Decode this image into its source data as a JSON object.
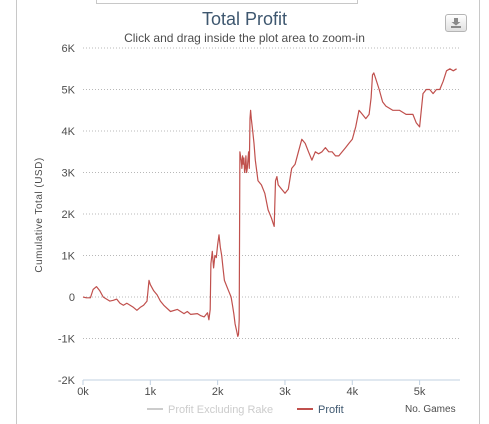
{
  "chart_data": {
    "type": "line",
    "title": "Total Profit",
    "subtitle": "Click and drag inside the plot area to zoom-in",
    "xlabel": "No. Games",
    "ylabel": "Cumulative Total (USD)",
    "xlim": [
      0,
      5600
    ],
    "ylim": [
      -2000,
      6000
    ],
    "x_ticks": [
      "0k",
      "1k",
      "2k",
      "3k",
      "4k",
      "5k"
    ],
    "y_ticks": [
      "-2K",
      "-1K",
      "0",
      "1K",
      "2K",
      "3K",
      "4K",
      "5K",
      "6K"
    ],
    "grid": true,
    "legend_position": "bottom",
    "series": [
      {
        "name": "Profit Excluding Rake",
        "color": "#cccccc",
        "visible": false,
        "points": []
      },
      {
        "name": "Profit",
        "color": "#c0504d",
        "visible": true,
        "points": [
          [
            0,
            0
          ],
          [
            50,
            -20
          ],
          [
            110,
            -20
          ],
          [
            150,
            180
          ],
          [
            200,
            250
          ],
          [
            250,
            150
          ],
          [
            300,
            0
          ],
          [
            350,
            -50
          ],
          [
            400,
            -100
          ],
          [
            450,
            -80
          ],
          [
            500,
            -50
          ],
          [
            550,
            -150
          ],
          [
            600,
            -200
          ],
          [
            650,
            -150
          ],
          [
            700,
            -200
          ],
          [
            750,
            -250
          ],
          [
            800,
            -320
          ],
          [
            850,
            -250
          ],
          [
            900,
            -200
          ],
          [
            950,
            -100
          ],
          [
            980,
            400
          ],
          [
            1000,
            300
          ],
          [
            1050,
            150
          ],
          [
            1100,
            50
          ],
          [
            1150,
            -100
          ],
          [
            1200,
            -200
          ],
          [
            1300,
            -350
          ],
          [
            1400,
            -300
          ],
          [
            1500,
            -400
          ],
          [
            1550,
            -350
          ],
          [
            1600,
            -420
          ],
          [
            1700,
            -400
          ],
          [
            1750,
            -450
          ],
          [
            1800,
            -480
          ],
          [
            1850,
            -380
          ],
          [
            1870,
            -550
          ],
          [
            1890,
            -300
          ],
          [
            1900,
            800
          ],
          [
            1920,
            1100
          ],
          [
            1940,
            700
          ],
          [
            1960,
            1000
          ],
          [
            1980,
            950
          ],
          [
            2000,
            1250
          ],
          [
            2020,
            1500
          ],
          [
            2040,
            1200
          ],
          [
            2060,
            1000
          ],
          [
            2080,
            700
          ],
          [
            2100,
            400
          ],
          [
            2150,
            200
          ],
          [
            2200,
            0
          ],
          [
            2220,
            -200
          ],
          [
            2240,
            -400
          ],
          [
            2260,
            -650
          ],
          [
            2280,
            -800
          ],
          [
            2300,
            -950
          ],
          [
            2310,
            -900
          ],
          [
            2320,
            -550
          ],
          [
            2330,
            3500
          ],
          [
            2340,
            3400
          ],
          [
            2350,
            3300
          ],
          [
            2360,
            3100
          ],
          [
            2370,
            3400
          ],
          [
            2380,
            3200
          ],
          [
            2390,
            3350
          ],
          [
            2400,
            3000
          ],
          [
            2410,
            3100
          ],
          [
            2420,
            3400
          ],
          [
            2430,
            3000
          ],
          [
            2440,
            3100
          ],
          [
            2450,
            3300
          ],
          [
            2460,
            3500
          ],
          [
            2470,
            3100
          ],
          [
            2480,
            4300
          ],
          [
            2490,
            4500
          ],
          [
            2500,
            4300
          ],
          [
            2520,
            4000
          ],
          [
            2540,
            3700
          ],
          [
            2560,
            3300
          ],
          [
            2600,
            2800
          ],
          [
            2650,
            2700
          ],
          [
            2700,
            2500
          ],
          [
            2750,
            2100
          ],
          [
            2800,
            1900
          ],
          [
            2820,
            1800
          ],
          [
            2840,
            1700
          ],
          [
            2860,
            2800
          ],
          [
            2880,
            2900
          ],
          [
            2900,
            2700
          ],
          [
            2950,
            2600
          ],
          [
            3000,
            2500
          ],
          [
            3050,
            2600
          ],
          [
            3100,
            3100
          ],
          [
            3150,
            3200
          ],
          [
            3200,
            3500
          ],
          [
            3250,
            3800
          ],
          [
            3300,
            3700
          ],
          [
            3350,
            3500
          ],
          [
            3400,
            3300
          ],
          [
            3450,
            3500
          ],
          [
            3500,
            3450
          ],
          [
            3550,
            3500
          ],
          [
            3600,
            3600
          ],
          [
            3650,
            3500
          ],
          [
            3700,
            3500
          ],
          [
            3750,
            3400
          ],
          [
            3800,
            3400
          ],
          [
            3850,
            3500
          ],
          [
            3900,
            3600
          ],
          [
            3950,
            3700
          ],
          [
            4000,
            3800
          ],
          [
            4050,
            4100
          ],
          [
            4100,
            4500
          ],
          [
            4150,
            4400
          ],
          [
            4200,
            4300
          ],
          [
            4250,
            4400
          ],
          [
            4280,
            4800
          ],
          [
            4300,
            5350
          ],
          [
            4320,
            5400
          ],
          [
            4340,
            5300
          ],
          [
            4400,
            5000
          ],
          [
            4450,
            4700
          ],
          [
            4500,
            4600
          ],
          [
            4600,
            4500
          ],
          [
            4700,
            4500
          ],
          [
            4800,
            4400
          ],
          [
            4900,
            4400
          ],
          [
            4950,
            4200
          ],
          [
            5000,
            4100
          ],
          [
            5050,
            4900
          ],
          [
            5100,
            5000
          ],
          [
            5150,
            5000
          ],
          [
            5200,
            4900
          ],
          [
            5250,
            5000
          ],
          [
            5300,
            5000
          ],
          [
            5350,
            5200
          ],
          [
            5400,
            5450
          ],
          [
            5450,
            5500
          ],
          [
            5500,
            5450
          ],
          [
            5550,
            5500
          ]
        ]
      }
    ]
  },
  "export_icon": "download-icon"
}
